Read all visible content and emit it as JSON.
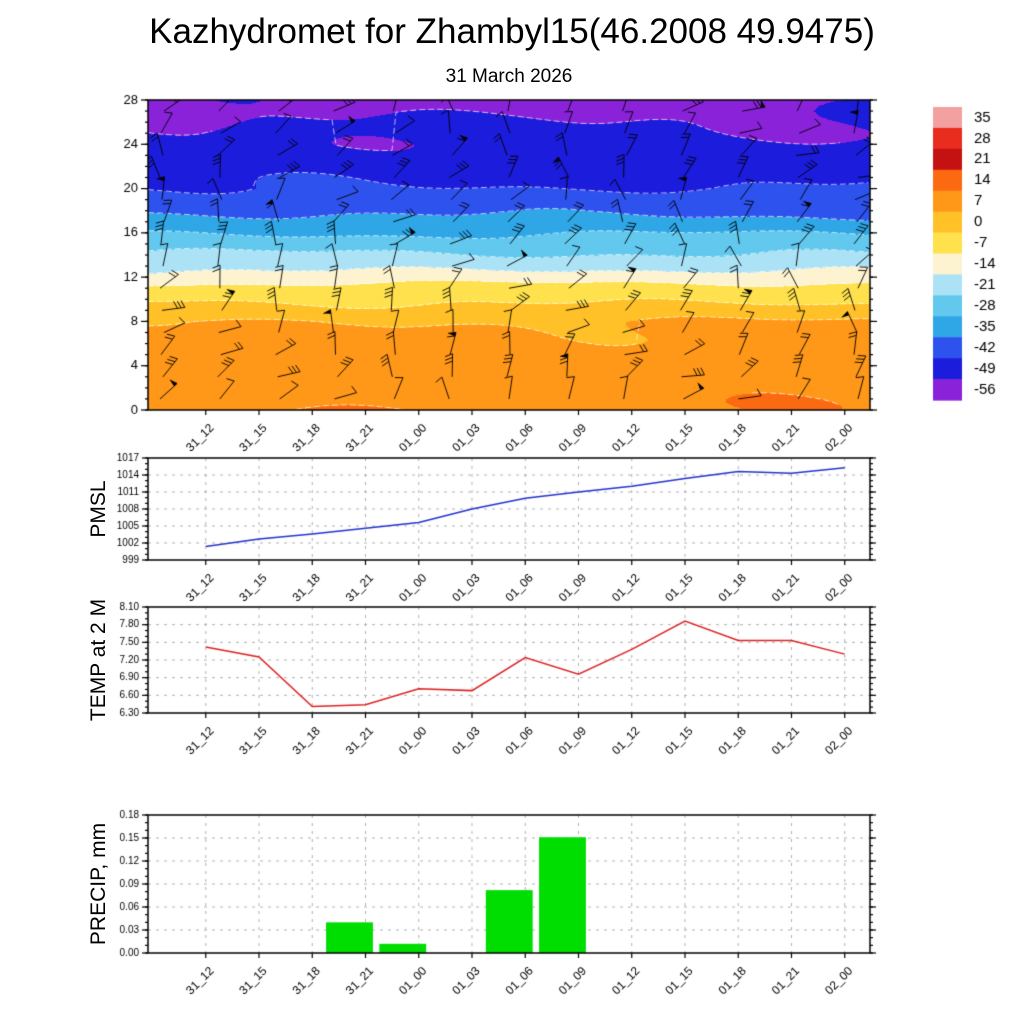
{
  "page": {
    "title": "Kazhydromet for Zhambyl15(46.2008 49.9475)"
  },
  "time_labels": [
    "31_12",
    "31_15",
    "31_18",
    "31_21",
    "01_00",
    "01_03",
    "01_06",
    "01_09",
    "01_12",
    "01_15",
    "01_18",
    "01_21",
    "02_00"
  ],
  "chart_data": [
    {
      "type": "heatmap",
      "title": "31 March 2026",
      "ylim": [
        0,
        28
      ],
      "y_ticks": [
        0,
        4,
        8,
        12,
        16,
        20,
        24,
        28
      ],
      "y_tick_labels": [
        "0",
        "4",
        "8",
        "12",
        "16",
        "20",
        "24",
        "28"
      ],
      "overlay": "wind-barbs",
      "colorbar_labels": [
        "35",
        "28",
        "21",
        "14",
        "7",
        "0",
        "-7",
        "-14",
        "-21",
        "-28",
        "-35",
        "-42",
        "-49",
        "-56"
      ],
      "colorbar_colors": [
        "#f2a0a0",
        "#e82c1e",
        "#c41212",
        "#fb6a10",
        "#ff9718",
        "#ffc028",
        "#ffe14d",
        "#fdf3d0",
        "#abe2f6",
        "#62c8ee",
        "#2fa6e6",
        "#2e52ee",
        "#1c1cdc",
        "#8a22da"
      ],
      "colorbar_step": 7,
      "profile_heights": [
        0,
        2,
        4,
        6,
        8,
        10,
        11,
        12,
        13,
        14,
        16,
        18,
        20,
        22,
        24,
        26,
        28
      ],
      "profile_temps": [
        9.5,
        8.5,
        7,
        5.5,
        3.2,
        -4.5,
        -8,
        -14,
        -19,
        -24,
        -32,
        -40,
        -45,
        -48.5,
        -51,
        -52.5,
        -54
      ]
    },
    {
      "type": "line",
      "name": "PMSL",
      "color": "#2233cc",
      "ylim": [
        999,
        1017
      ],
      "y_ticks": [
        999,
        1002,
        1005,
        1008,
        1011,
        1014,
        1017
      ],
      "y_tick_labels": [
        "999",
        "1002",
        "1005",
        "1008",
        "1011",
        "1014",
        "1017"
      ],
      "minor_step": 1,
      "values": [
        1001.4,
        1002.7,
        1003.6,
        1004.6,
        1005.6,
        1008.0,
        1009.9,
        1011.0,
        1012.0,
        1013.4,
        1014.6,
        1014.3,
        1015.3
      ]
    },
    {
      "type": "line",
      "name": "TEMP at 2 M",
      "color": "#dd2222",
      "ylim": [
        6.3,
        8.1
      ],
      "y_ticks": [
        6.3,
        6.6,
        6.9,
        7.2,
        7.5,
        7.8,
        8.1
      ],
      "y_tick_labels": [
        "6.30",
        "6.60",
        "6.90",
        "7.20",
        "7.50",
        "7.80",
        "8.10"
      ],
      "minor_step": 0.1,
      "values": [
        7.42,
        7.25,
        6.41,
        6.44,
        6.71,
        6.68,
        7.24,
        6.96,
        7.38,
        7.86,
        7.53,
        7.53,
        7.3
      ]
    },
    {
      "type": "bar",
      "name": "PRECIP, mm",
      "color": "#00dd00",
      "ylim": [
        0,
        0.18
      ],
      "y_ticks": [
        0.0,
        0.03,
        0.06,
        0.09,
        0.12,
        0.15,
        0.18
      ],
      "y_tick_labels": [
        "0.00",
        "0.03",
        "0.06",
        "0.09",
        "0.12",
        "0.15",
        "0.18"
      ],
      "minor_step": 0.01,
      "values": [
        0,
        0,
        0,
        0.04,
        0.012,
        0,
        0.082,
        0.151,
        0,
        0,
        0,
        0,
        0
      ]
    }
  ]
}
